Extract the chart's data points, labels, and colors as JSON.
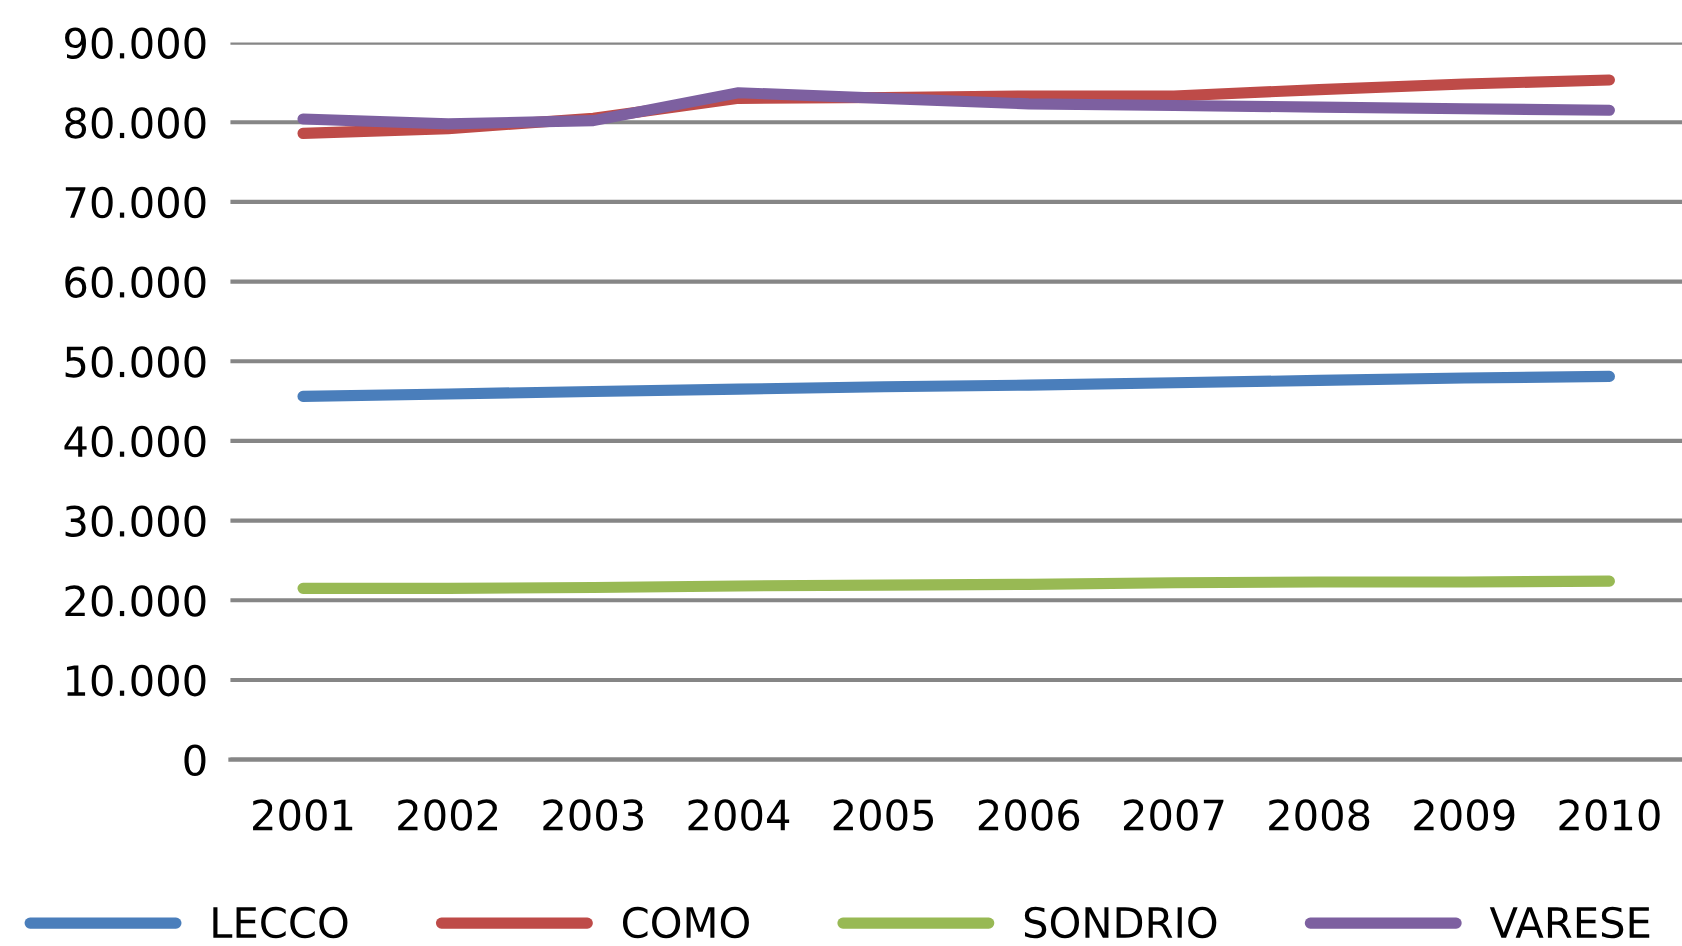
{
  "chart_data": {
    "type": "line",
    "categories": [
      "2001",
      "2002",
      "2003",
      "2004",
      "2005",
      "2006",
      "2007",
      "2008",
      "2009",
      "2010"
    ],
    "series": [
      {
        "name": "LECCO",
        "color": "#4a7ebb",
        "values": [
          45600,
          45900,
          46200,
          46500,
          46800,
          47000,
          47300,
          47600,
          47900,
          48100
        ]
      },
      {
        "name": "COMO",
        "color": "#be4b48",
        "values": [
          78600,
          79200,
          80500,
          83000,
          83100,
          83300,
          83300,
          84100,
          84800,
          85300
        ]
      },
      {
        "name": "SONDRIO",
        "color": "#98b954",
        "values": [
          21500,
          21500,
          21600,
          21800,
          21900,
          22000,
          22200,
          22300,
          22300,
          22400
        ]
      },
      {
        "name": "VARESE",
        "color": "#7d60a0",
        "values": [
          80400,
          79800,
          80200,
          83700,
          83000,
          82300,
          82100,
          81900,
          81700,
          81500
        ]
      }
    ],
    "ylim": [
      0,
      90000
    ],
    "yticks": [
      {
        "value": 0,
        "label": "0"
      },
      {
        "value": 10000,
        "label": "10.000"
      },
      {
        "value": 20000,
        "label": "20.000"
      },
      {
        "value": 30000,
        "label": "30.000"
      },
      {
        "value": 40000,
        "label": "40.000"
      },
      {
        "value": 50000,
        "label": "50.000"
      },
      {
        "value": 60000,
        "label": "60.000"
      },
      {
        "value": 70000,
        "label": "70.000"
      },
      {
        "value": 80000,
        "label": "80.000"
      },
      {
        "value": 90000,
        "label": "90.000"
      }
    ],
    "grid": "y",
    "legend": "bottom",
    "marker": "none",
    "line_style": "solid"
  }
}
